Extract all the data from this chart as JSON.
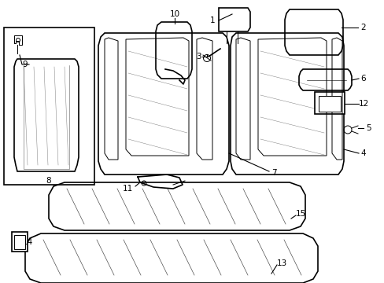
{
  "bg_color": "#ffffff",
  "line_color": "#000000",
  "line_width": 1.2,
  "thin_line": 0.7,
  "figsize": [
    4.89,
    3.6
  ],
  "dpi": 100
}
